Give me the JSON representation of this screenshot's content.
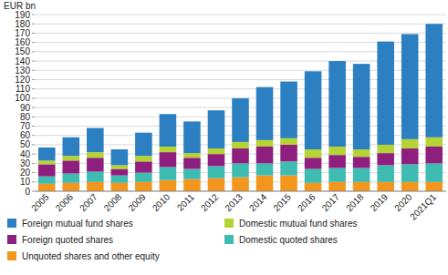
{
  "chart_data": {
    "type": "bar",
    "stacked": true,
    "grid": true,
    "legend": "bottom",
    "y_label": "EUR bn",
    "categories": [
      "2005",
      "2006",
      "2007",
      "2008",
      "2009",
      "2010",
      "2011",
      "2012",
      "2013",
      "2014",
      "2015",
      "2016",
      "2017",
      "2018",
      "2019",
      "2020",
      "2021Q1"
    ],
    "series": [
      {
        "name": "Unquoted shares and other equity",
        "color": "#f3961e",
        "values": [
          8,
          9,
          10,
          9,
          10,
          12,
          13,
          14,
          15,
          17,
          17,
          9,
          10,
          10,
          10,
          10,
          10
        ]
      },
      {
        "name": "Domestic quoted shares",
        "color": "#3fbcb2",
        "values": [
          8,
          10,
          11,
          8,
          10,
          14,
          11,
          13,
          15,
          13,
          15,
          15,
          15,
          15,
          18,
          19,
          20
        ]
      },
      {
        "name": "Foreign quoted shares",
        "color": "#8e1f7e",
        "values": [
          13,
          14,
          15,
          7,
          12,
          16,
          12,
          13,
          16,
          18,
          18,
          12,
          14,
          12,
          13,
          17,
          18
        ]
      },
      {
        "name": "Domestic mutual fund shares",
        "color": "#b5d334",
        "values": [
          4,
          5,
          6,
          4,
          6,
          6,
          5,
          6,
          7,
          7,
          7,
          9,
          9,
          8,
          9,
          10,
          10
        ]
      },
      {
        "name": "Foreign mutual fund shares",
        "color": "#2c7fc1",
        "values": [
          14,
          20,
          26,
          17,
          25,
          35,
          34,
          41,
          47,
          57,
          61,
          84,
          92,
          92,
          111,
          113,
          122
        ]
      }
    ],
    "ylim": [
      0,
      190
    ],
    "yticks": [
      0,
      10,
      20,
      30,
      40,
      50,
      60,
      70,
      80,
      90,
      100,
      110,
      120,
      130,
      140,
      150,
      160,
      170,
      180,
      190
    ]
  }
}
